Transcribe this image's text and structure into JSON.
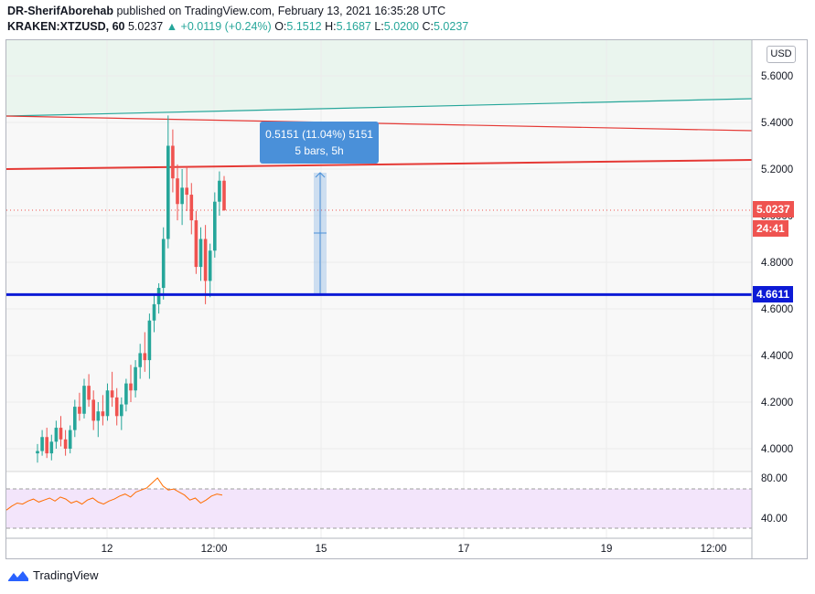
{
  "header": {
    "author": "DR-SherifAborehab",
    "published_text": "published on TradingView.com, February 13, 2021 16:35:28 UTC",
    "symbol": "KRAKEN:XTZUSD, 60",
    "last": "5.0237",
    "change": "▲ +0.0119 (+0.24%)",
    "o_label": "O:",
    "o": "5.1512",
    "h_label": "H:",
    "h": "5.1687",
    "l_label": "L:",
    "l": "5.0200",
    "c_label": "C:",
    "c": "5.0237"
  },
  "currency_button": "USD",
  "price_tag": "5.0237",
  "countdown_tag": "24:41",
  "level_tag": "4.6611",
  "measure": {
    "line1": "0.5151 (11.04%) 5151",
    "line2": "5 bars, 5h"
  },
  "footer": {
    "brand": "TradingView"
  },
  "colors": {
    "up": "#26a69a",
    "down": "#ef5350",
    "level": "#0d1bd6",
    "measure": "#4a90d9",
    "rsi_band": "#f3e5fb",
    "rsi_line": "#ff6d00"
  },
  "chart_data": {
    "type": "candlestick",
    "price_axis_ticks": [
      "5.6000",
      "5.4000",
      "5.2000",
      "5.0000",
      "4.8000",
      "4.6000",
      "4.4000",
      "4.2000",
      "4.0000"
    ],
    "time_axis_ticks": [
      "12",
      "12:00",
      "15",
      "17",
      "19",
      "12:00"
    ],
    "ylim": [
      3.9,
      5.7
    ],
    "horizontal_level": 4.6611,
    "last_price": 5.0237,
    "candles_ohlc": [
      [
        3.98,
        4.02,
        3.94,
        3.99
      ],
      [
        3.99,
        4.08,
        3.97,
        4.05
      ],
      [
        4.05,
        4.09,
        3.96,
        3.98
      ],
      [
        3.98,
        4.06,
        3.95,
        4.03
      ],
      [
        4.03,
        4.12,
        4.0,
        4.09
      ],
      [
        4.09,
        4.14,
        4.01,
        4.04
      ],
      [
        4.04,
        4.08,
        3.97,
        4.0
      ],
      [
        4.0,
        4.1,
        3.98,
        4.08
      ],
      [
        4.08,
        4.21,
        4.05,
        4.18
      ],
      [
        4.18,
        4.24,
        4.12,
        4.15
      ],
      [
        4.15,
        4.3,
        4.13,
        4.27
      ],
      [
        4.27,
        4.32,
        4.18,
        4.21
      ],
      [
        4.21,
        4.25,
        4.08,
        4.12
      ],
      [
        4.12,
        4.2,
        4.05,
        4.16
      ],
      [
        4.16,
        4.23,
        4.1,
        4.14
      ],
      [
        4.14,
        4.28,
        4.12,
        4.25
      ],
      [
        4.25,
        4.33,
        4.18,
        4.22
      ],
      [
        4.22,
        4.26,
        4.1,
        4.14
      ],
      [
        4.14,
        4.22,
        4.08,
        4.19
      ],
      [
        4.19,
        4.3,
        4.16,
        4.28
      ],
      [
        4.28,
        4.36,
        4.2,
        4.25
      ],
      [
        4.25,
        4.38,
        4.22,
        4.35
      ],
      [
        4.35,
        4.45,
        4.3,
        4.41
      ],
      [
        4.41,
        4.5,
        4.33,
        4.38
      ],
      [
        4.38,
        4.58,
        4.3,
        4.55
      ],
      [
        4.55,
        4.66,
        4.5,
        4.62
      ],
      [
        4.62,
        4.71,
        4.58,
        4.69
      ],
      [
        4.69,
        4.95,
        4.64,
        4.9
      ],
      [
        4.9,
        5.43,
        4.86,
        5.3
      ],
      [
        5.3,
        5.37,
        5.1,
        5.16
      ],
      [
        5.16,
        5.22,
        4.98,
        5.05
      ],
      [
        5.05,
        5.2,
        4.96,
        5.12
      ],
      [
        5.12,
        5.21,
        5.02,
        5.09
      ],
      [
        5.09,
        5.14,
        4.92,
        4.98
      ],
      [
        4.98,
        5.02,
        4.75,
        4.78
      ],
      [
        4.78,
        4.95,
        4.72,
        4.9
      ],
      [
        4.9,
        4.96,
        4.62,
        4.72
      ],
      [
        4.72,
        4.88,
        4.65,
        4.85
      ],
      [
        4.85,
        5.1,
        4.82,
        5.06
      ],
      [
        5.06,
        5.19,
        5.0,
        5.15
      ],
      [
        5.15,
        5.17,
        5.02,
        5.0237
      ]
    ],
    "rsi": {
      "type": "line",
      "yticks": [
        "80.00",
        "40.00"
      ],
      "ylim": [
        25,
        90
      ],
      "values": [
        48,
        52,
        55,
        54,
        57,
        59,
        56,
        58,
        60,
        57,
        61,
        59,
        55,
        57,
        54,
        58,
        60,
        56,
        54,
        57,
        59,
        62,
        64,
        61,
        66,
        68,
        70,
        75,
        80,
        72,
        68,
        69,
        66,
        63,
        58,
        60,
        55,
        58,
        62,
        64,
        63
      ]
    }
  }
}
